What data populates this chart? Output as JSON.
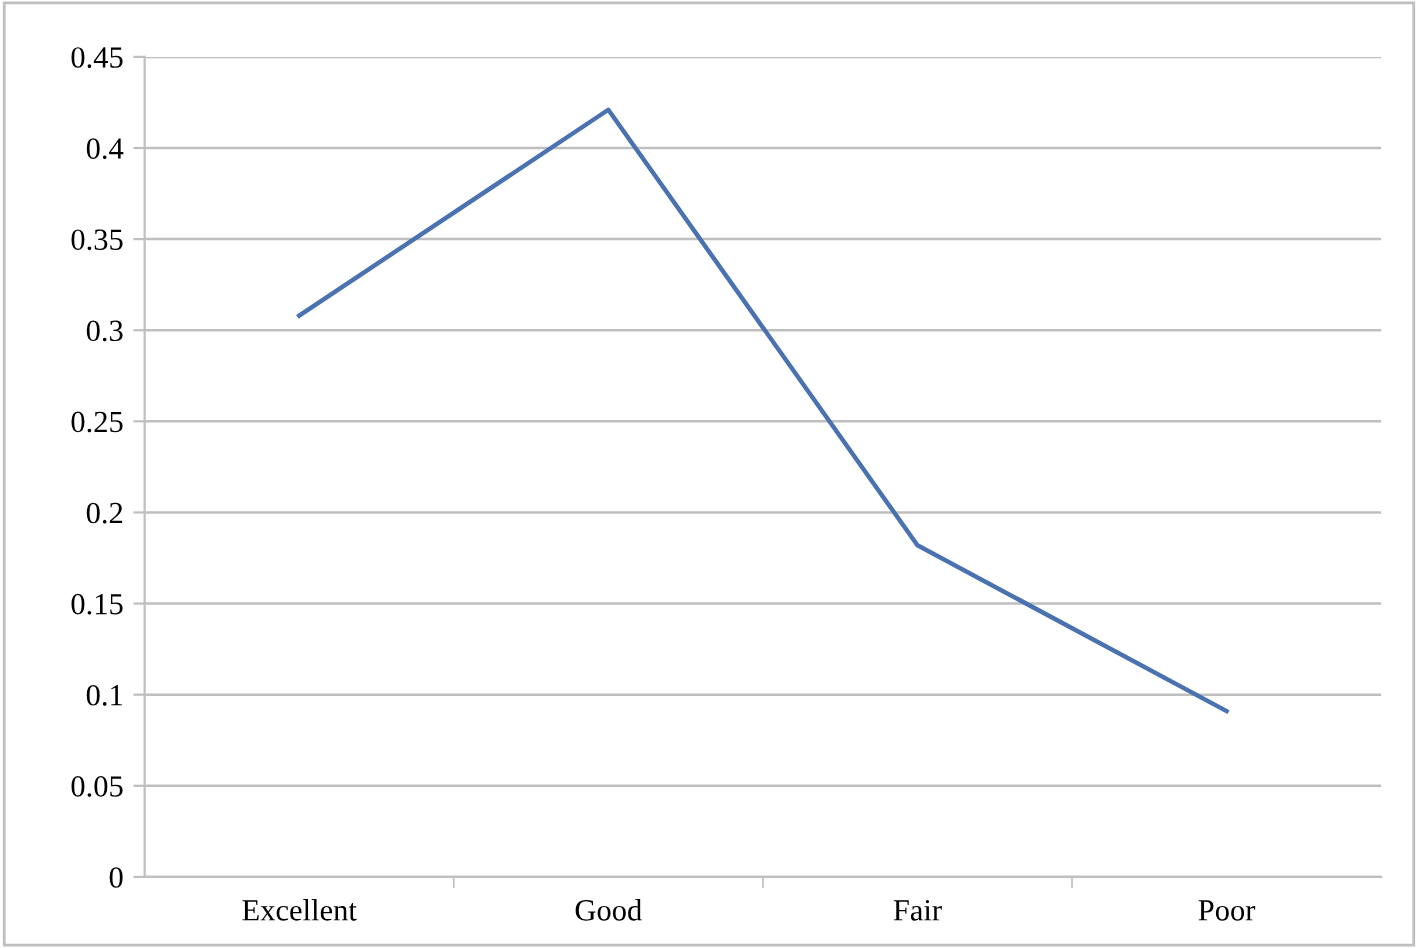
{
  "chart_data": {
    "type": "line",
    "categories": [
      "Excellent",
      "Good",
      "Fair",
      "Poor"
    ],
    "series": [
      {
        "color": "#4a72b0",
        "values": [
          0.308,
          0.421,
          0.182,
          0.091
        ]
      }
    ],
    "ylim": [
      0,
      0.45
    ],
    "yticks": [
      0,
      0.05,
      0.1,
      0.15,
      0.2,
      0.25,
      0.3,
      0.35,
      0.4,
      0.45
    ],
    "grid": "y",
    "legend": false,
    "marker": "none",
    "line_style": "solid"
  }
}
